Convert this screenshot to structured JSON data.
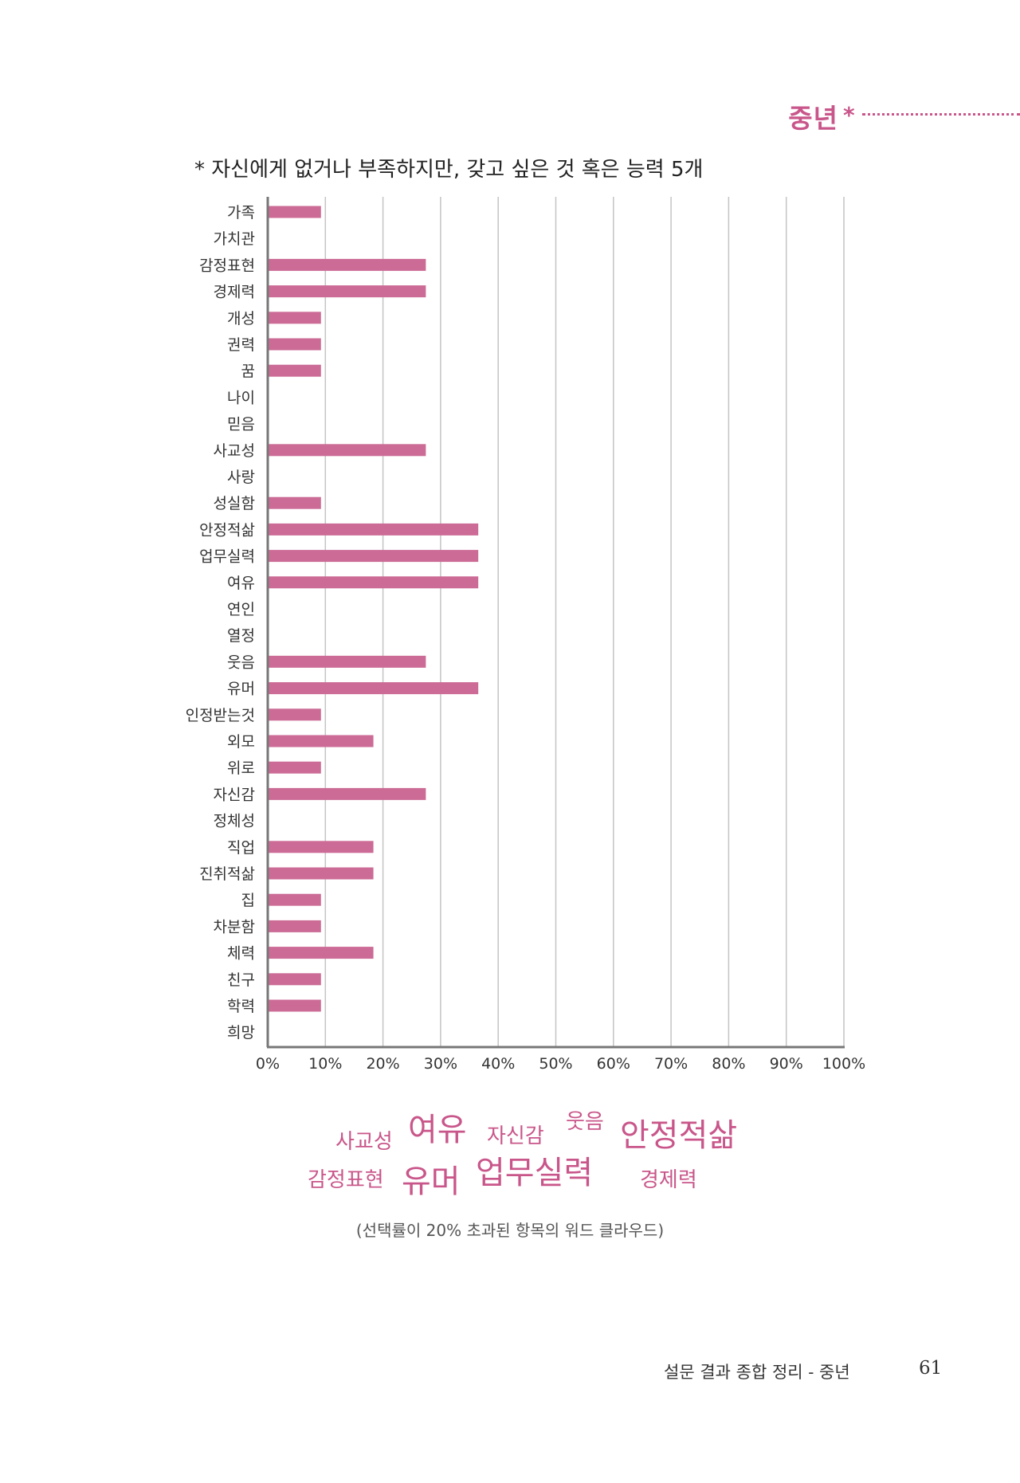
{
  "section": {
    "title": "중년",
    "star": "*"
  },
  "chart_data": {
    "type": "bar",
    "orientation": "horizontal",
    "title": "* 자신에게 없거나 부족하지만, 갖고 싶은 것 혹은 능력 5개",
    "xlabel": "",
    "ylabel": "",
    "xlim": [
      0,
      100
    ],
    "x_ticks": [
      "0%",
      "10%",
      "20%",
      "30%",
      "40%",
      "50%",
      "60%",
      "70%",
      "80%",
      "90%",
      "100%"
    ],
    "grid": true,
    "bar_color": "#cc6b96",
    "categories": [
      "가족",
      "가치관",
      "감정표현",
      "경제력",
      "개성",
      "권력",
      "꿈",
      "나이",
      "믿음",
      "사교성",
      "사랑",
      "성실함",
      "안정적삶",
      "업무실력",
      "여유",
      "연인",
      "열정",
      "웃음",
      "유머",
      "인정받는것",
      "외모",
      "위로",
      "자신감",
      "정체성",
      "직업",
      "진취적삶",
      "집",
      "차분함",
      "체력",
      "친구",
      "학력",
      "희망"
    ],
    "values": [
      9.1,
      0,
      27.3,
      27.3,
      9.1,
      9.1,
      9.1,
      0,
      0,
      27.3,
      0,
      9.1,
      36.4,
      36.4,
      36.4,
      0,
      0,
      27.3,
      36.4,
      9.1,
      18.2,
      9.1,
      27.3,
      0,
      18.2,
      18.2,
      9.1,
      9.1,
      18.2,
      9.1,
      9.1,
      0
    ]
  },
  "wordcloud": {
    "words": [
      {
        "text": "사교성"
      },
      {
        "text": "여유"
      },
      {
        "text": "자신감"
      },
      {
        "text": "웃음"
      },
      {
        "text": "안정적삶"
      },
      {
        "text": "감정표현"
      },
      {
        "text": "유머"
      },
      {
        "text": "업무실력"
      },
      {
        "text": "경제력"
      }
    ],
    "caption": "(선택률이 20% 초과된 항목의 워드 클라우드)"
  },
  "footer": {
    "title": "설문 결과 종합 정리 - 중년",
    "page": "61"
  }
}
